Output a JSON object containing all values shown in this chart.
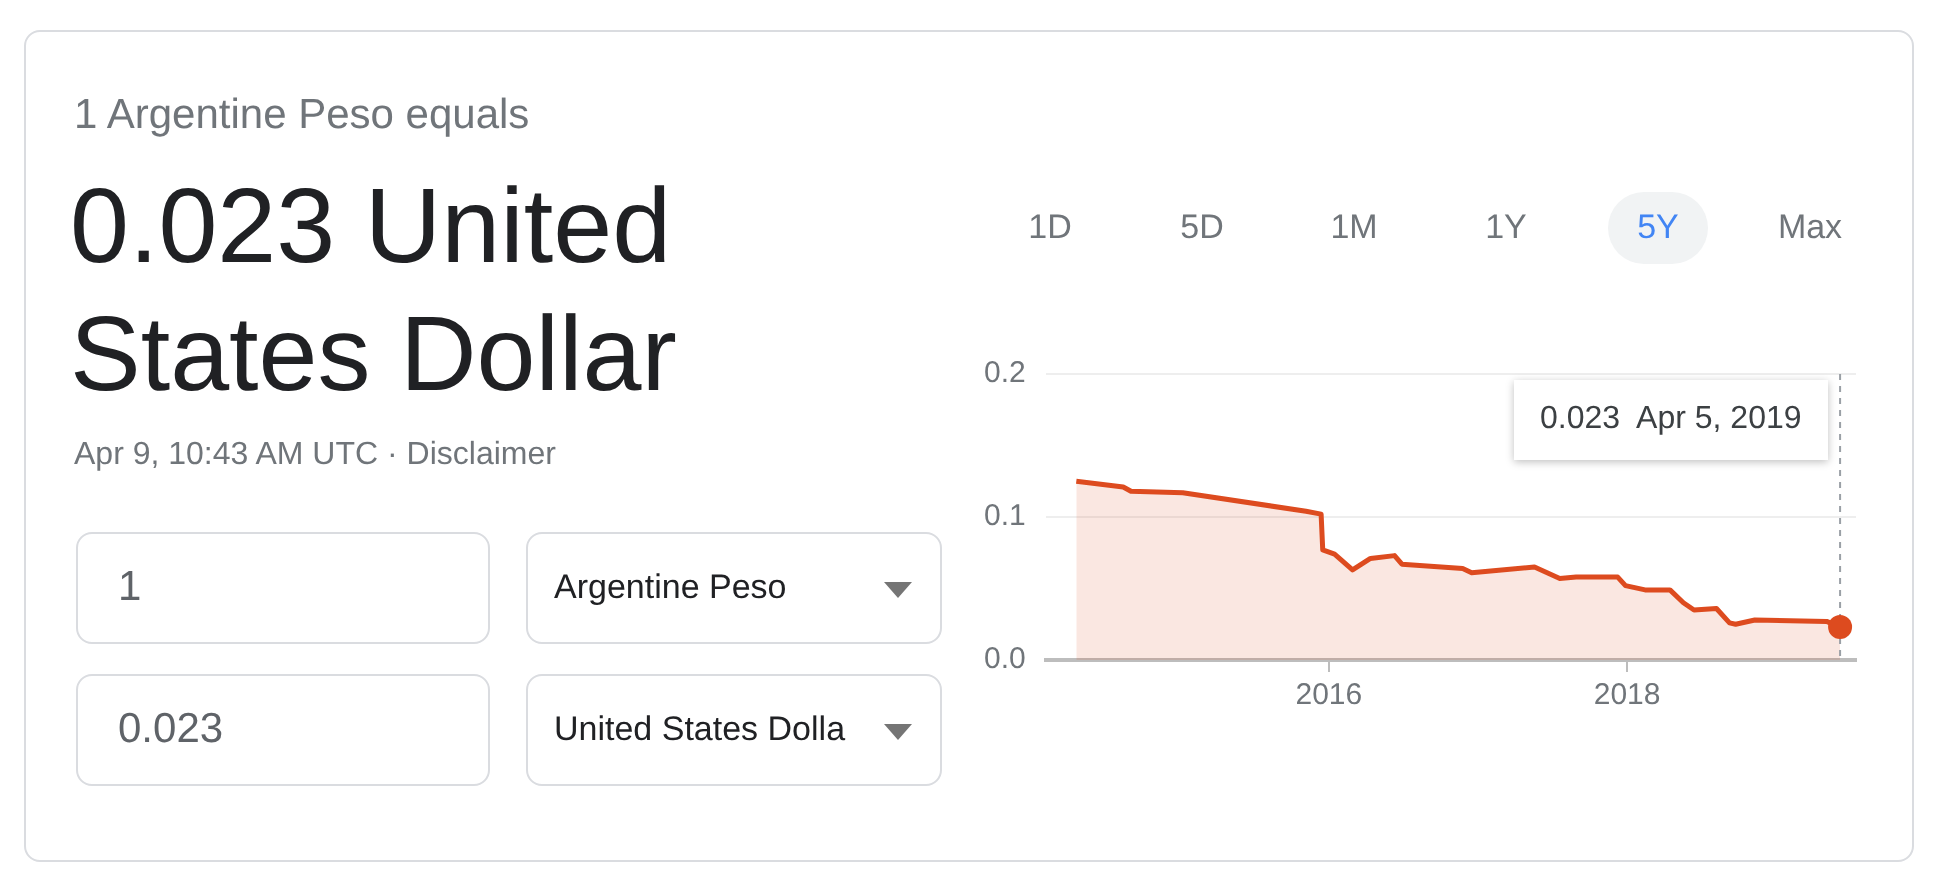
{
  "chart_data": {
    "type": "area",
    "title": "0.023 United States Dollar",
    "subtitle": "1 Argentine Peso equals",
    "annotations": [
      "Apr 9, 10:43 AM UTC · Disclaimer",
      "1",
      "0.023",
      "Argentine Peso",
      "United States Dolla",
      "1D",
      "5D",
      "1M",
      "1Y",
      "5Y",
      "Max",
      "0.023  Apr 5, 2019"
    ],
    "ref_lines": [
      {
        "axis": "x",
        "value": "2019-06-07",
        "color": "#9aa0a6",
        "line_style": "dashed"
      }
    ],
    "series": [
      {
        "color": "#dd4b1f",
        "x": [
          "2014-04-22",
          "2014-08-15",
          "2014-09-03",
          "2015-01-08",
          "2015-11-06",
          "2015-12-13",
          "2015-12-17",
          "2016-01-15",
          "2016-02-28",
          "2016-04-12",
          "2016-06-10",
          "2016-06-28",
          "2016-11-24",
          "2016-12-16",
          "2017-05-19",
          "2017-07-20",
          "2017-08-29",
          "2017-12-09",
          "2017-12-28",
          "2018-02-14",
          "2018-04-16",
          "2018-05-19",
          "2018-06-14",
          "2018-08-08",
          "2018-09-09",
          "2018-09-24",
          "2018-11-10",
          "2019-05-05",
          "2019-06-07"
        ],
        "values": [
          0.125,
          0.121,
          0.118,
          0.117,
          0.104,
          0.102,
          0.077,
          0.074,
          0.063,
          0.071,
          0.073,
          0.067,
          0.064,
          0.061,
          0.065,
          0.057,
          0.058,
          0.058,
          0.052,
          0.049,
          0.049,
          0.04,
          0.035,
          0.036,
          0.026,
          0.025,
          0.028,
          0.027,
          0.023
        ]
      }
    ],
    "xlim": [
      "2014-02-06",
      "2019-07-16"
    ],
    "xticks": [
      "2016",
      "2018"
    ],
    "ylim": [
      0,
      0.2
    ],
    "yticks": [
      {
        "value": 0,
        "label": "0.0"
      },
      0.1,
      0.2
    ],
    "grid": "y"
  }
}
